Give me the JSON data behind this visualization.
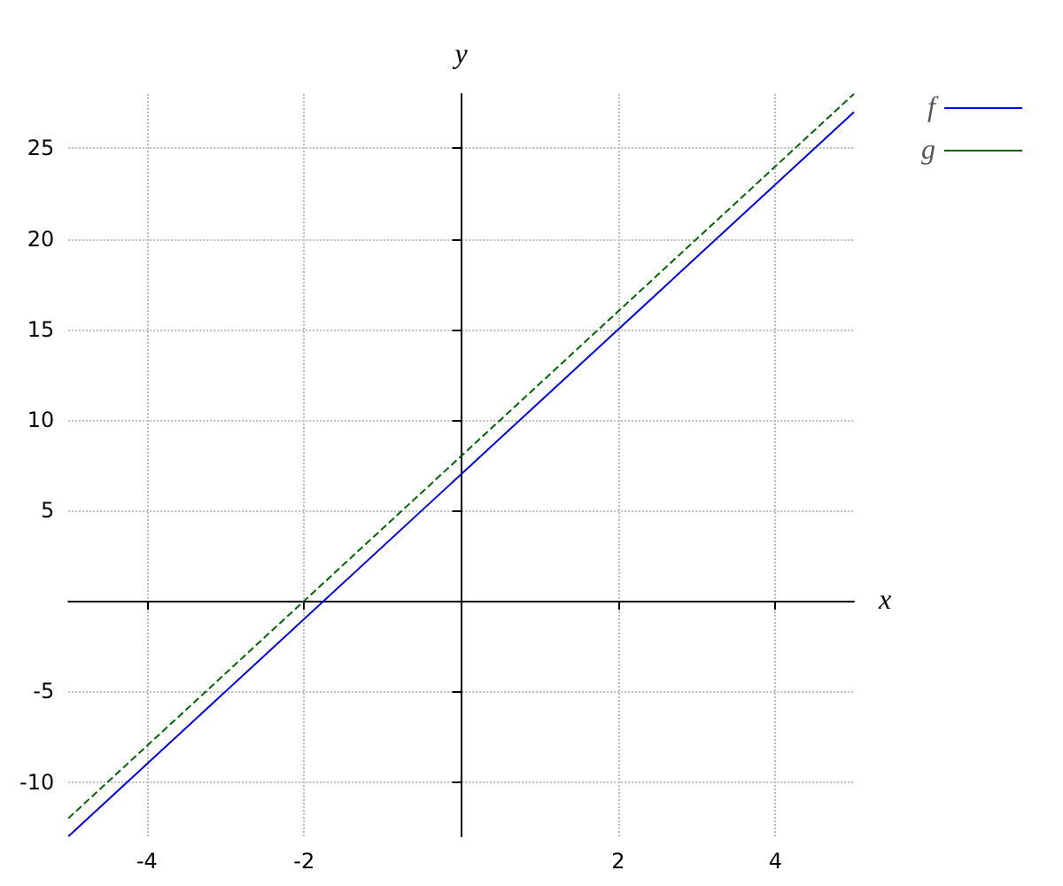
{
  "chart_data": {
    "type": "line",
    "xlabel": "x",
    "ylabel": "y",
    "xlim": [
      -5,
      5
    ],
    "ylim": [
      -13,
      28
    ],
    "xticks": [
      -4,
      -2,
      2,
      4
    ],
    "yticks": [
      -10,
      -5,
      5,
      10,
      15,
      20,
      25
    ],
    "grid": true,
    "legend": "top right",
    "marker": "none",
    "series": [
      {
        "name": "f",
        "color": "#0000ff",
        "x": [
          -5,
          0,
          5
        ],
        "values": [
          -13,
          7,
          27
        ],
        "line_style": "solid"
      },
      {
        "name": "g",
        "color": "#006400",
        "x": [
          -5,
          0,
          5
        ],
        "values": [
          -12,
          8,
          28
        ],
        "line_style": "dashed"
      }
    ]
  }
}
